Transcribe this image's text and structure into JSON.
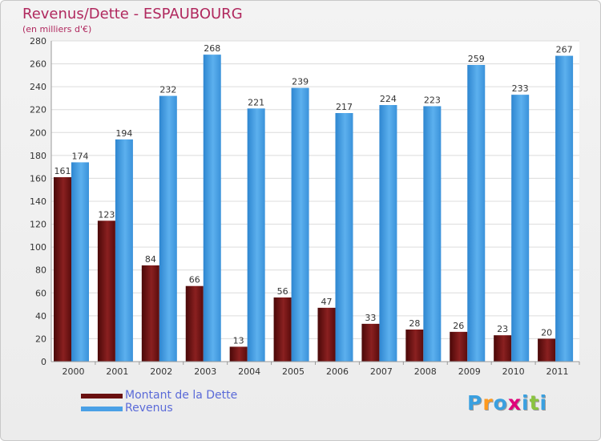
{
  "title": "Revenus/Dette - ESPAUBOURG",
  "subtitle": "(en milliers d'€)",
  "logo": {
    "letters": [
      "P",
      "r",
      "o",
      "x",
      "i",
      "t",
      "i"
    ],
    "colors": [
      "#3aa0e0",
      "#ff9a1e",
      "#3aa0e0",
      "#e0007a",
      "#3aa0e0",
      "#8ac43f",
      "#3aa0e0"
    ]
  },
  "legend": [
    {
      "label": "Montant de la Dette",
      "color": "#6a1010"
    },
    {
      "label": "Revenus",
      "color": "#4aa0e6"
    }
  ],
  "chart_data": {
    "type": "bar",
    "title": "Revenus/Dette - ESPAUBOURG",
    "subtitle": "(en milliers d'€)",
    "categories": [
      "2000",
      "2001",
      "2002",
      "2003",
      "2004",
      "2005",
      "2006",
      "2007",
      "2008",
      "2009",
      "2010",
      "2011"
    ],
    "series": [
      {
        "name": "Montant de la Dette",
        "color": "#6a1010",
        "values": [
          161,
          123,
          84,
          66,
          13,
          56,
          47,
          33,
          28,
          26,
          23,
          20
        ]
      },
      {
        "name": "Revenus",
        "color": "#4aa0e6",
        "values": [
          174,
          194,
          232,
          268,
          221,
          239,
          217,
          224,
          223,
          259,
          233,
          267
        ]
      }
    ],
    "ylim": [
      0,
      280
    ],
    "yticks": [
      "0",
      "20",
      "40",
      "60",
      "80",
      "100",
      "120",
      "140",
      "160",
      "180",
      "200",
      "220",
      "240",
      "260",
      "280"
    ],
    "grid": true,
    "legend_position": "bottom-left"
  }
}
